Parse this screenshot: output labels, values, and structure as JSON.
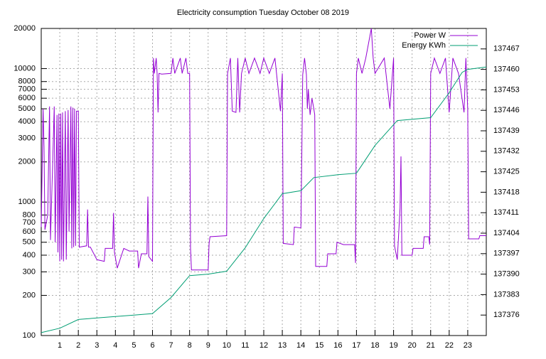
{
  "chart_data": {
    "type": "line",
    "title": "Electricity consumption Tuesday October 08 2019",
    "xlim": [
      0,
      24
    ],
    "xticks": [
      1,
      2,
      3,
      4,
      5,
      6,
      7,
      8,
      9,
      10,
      11,
      12,
      13,
      14,
      15,
      16,
      17,
      18,
      19,
      20,
      21,
      22,
      23
    ],
    "ylim": [
      100,
      20000
    ],
    "ylog": true,
    "yticks": [
      100,
      200,
      300,
      400,
      500,
      600,
      700,
      800,
      1000,
      2000,
      3000,
      4000,
      5000,
      6000,
      7000,
      8000,
      10000,
      20000
    ],
    "y2lim": [
      137369,
      137474
    ],
    "y2ticks": [
      137376,
      137383,
      137390,
      137397,
      137404,
      137411,
      137418,
      137425,
      137432,
      137439,
      137446,
      137453,
      137460,
      137467
    ],
    "grid": true,
    "legend": "top-right",
    "series": [
      {
        "name": "Power W",
        "color": "#9400d3",
        "x": [
          0,
          0.1,
          0.15,
          0.2,
          0.35,
          0.45,
          0.5,
          0.7,
          0.75,
          0.85,
          0.9,
          0.95,
          1.0,
          1.05,
          1.1,
          1.15,
          1.2,
          1.3,
          1.35,
          1.45,
          1.5,
          1.6,
          1.65,
          1.7,
          1.75,
          1.8,
          1.85,
          1.9,
          2.0,
          2.05,
          2.45,
          2.5,
          2.55,
          2.65,
          3.0,
          3.4,
          3.45,
          3.85,
          3.9,
          3.95,
          4.1,
          4.45,
          4.75,
          5.2,
          5.25,
          5.4,
          5.7,
          5.75,
          5.8,
          6.0,
          6.05,
          6.1,
          6.2,
          6.25,
          6.3,
          6.35,
          6.5,
          7.0,
          7.1,
          7.2,
          7.5,
          7.6,
          7.8,
          7.9,
          8.0,
          8.05,
          8.1,
          9.0,
          9.05,
          9.1,
          10.0,
          10.05,
          10.2,
          10.3,
          10.5,
          10.6,
          10.7,
          10.8,
          11.0,
          11.2,
          11.5,
          11.8,
          12.0,
          12.3,
          12.6,
          12.9,
          13.0,
          13.05,
          13.6,
          13.65,
          14.0,
          14.05,
          14.1,
          14.2,
          14.3,
          14.35,
          14.4,
          14.5,
          14.6,
          14.7,
          14.75,
          14.8,
          15.4,
          15.45,
          15.9,
          15.95,
          16.3,
          16.9,
          16.95,
          17.0,
          17.1,
          17.3,
          17.5,
          17.8,
          17.9,
          18.0,
          18.5,
          18.8,
          19.0,
          19.05,
          19.2,
          19.35,
          19.4,
          19.45,
          20.0,
          20.05,
          20.6,
          20.65,
          20.9,
          20.95,
          21.0,
          21.2,
          21.5,
          21.8,
          22.0,
          22.2,
          22.5,
          22.8,
          22.9,
          23.0,
          23.05,
          23.6,
          23.65,
          24
        ],
        "values": [
          650,
          5000,
          2600,
          620,
          800,
          5200,
          520,
          5200,
          500,
          4500,
          420,
          4600,
          360,
          4600,
          370,
          4700,
          360,
          4800,
          370,
          4900,
          600,
          5200,
          450,
          5100,
          460,
          5000,
          470,
          4800,
          4800,
          460,
          470,
          880,
          460,
          460,
          370,
          360,
          450,
          450,
          830,
          420,
          320,
          450,
          430,
          430,
          320,
          410,
          410,
          1100,
          390,
          360,
          12000,
          9200,
          12000,
          9200,
          4700,
          9200,
          9100,
          9200,
          12000,
          9200,
          12000,
          9200,
          12000,
          9200,
          9200,
          450,
          310,
          310,
          490,
          550,
          560,
          9200,
          12000,
          4800,
          4700,
          12000,
          4700,
          9200,
          12000,
          9200,
          12000,
          9200,
          12000,
          9200,
          12000,
          4800,
          9200,
          490,
          480,
          650,
          640,
          2200,
          9000,
          12000,
          9000,
          5000,
          7000,
          4500,
          6000,
          5000,
          4500,
          330,
          330,
          410,
          410,
          500,
          480,
          480,
          350,
          9200,
          12000,
          9200,
          12000,
          20000,
          12000,
          9200,
          12000,
          5000,
          12000,
          470,
          370,
          900,
          2200,
          400,
          400,
          450,
          450,
          550,
          550,
          480,
          9200,
          12000,
          9200,
          12000,
          4700,
          12000,
          9200,
          4700,
          12000,
          4900,
          530,
          530,
          560,
          560
        ]
      },
      {
        "name": "Energy KWh",
        "color": "#009e73",
        "axis": "y2",
        "x": [
          0,
          1,
          2,
          3,
          4,
          5,
          6,
          7,
          8,
          9,
          10,
          11,
          12,
          13,
          14,
          14.7,
          16,
          17,
          18,
          19.2,
          21,
          22,
          22.7,
          23,
          24
        ],
        "values": [
          137370,
          137371.5,
          137374.5,
          137375,
          137375.5,
          137376,
          137376.5,
          137382,
          137389.5,
          137390,
          137391,
          137399,
          137409,
          137417.5,
          137418.5,
          137423,
          137424,
          137424.5,
          137434,
          137442.5,
          137443.5,
          137452,
          137459,
          137460,
          137460.8
        ]
      }
    ]
  }
}
